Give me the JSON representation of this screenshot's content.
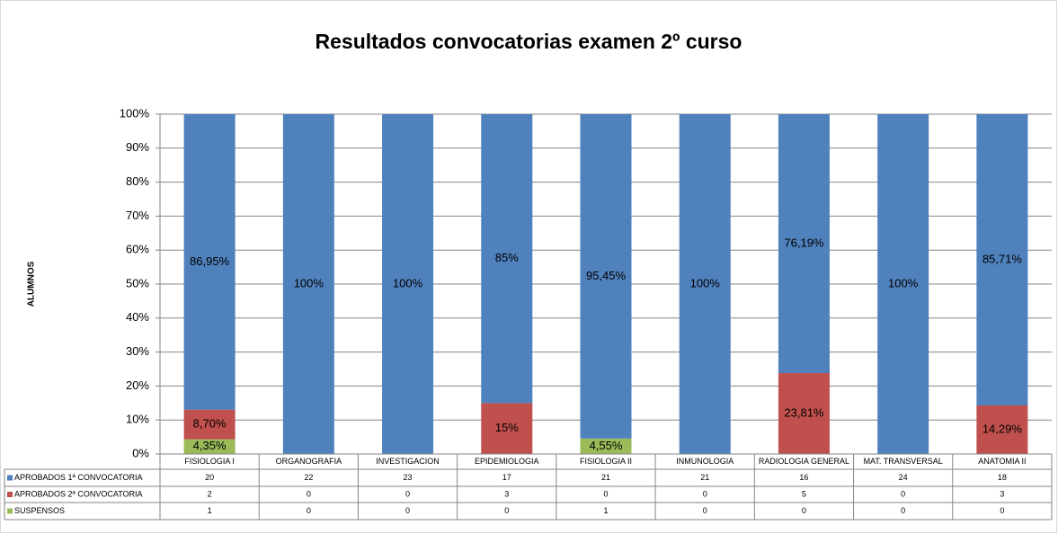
{
  "chart_data": {
    "type": "bar_stacked_100",
    "title": "Resultados convocatorias examen 2º curso",
    "y_label": "ALUMNOS",
    "categories": [
      "FISIOLOGIA I",
      "ORGANOGRAFIA",
      "INVESTIGACION",
      "EPIDEMIOLOGIA",
      "FISIOLOGIA II",
      "INMUNOLOGIA",
      "RADIOLOGIA GENERAL",
      "MAT. TRANSVERSAL",
      "ANATOMIA II"
    ],
    "series": [
      {
        "name": "APROBADOS 1ª CONVOCATORIA",
        "color": "#4f81bd",
        "values": [
          86.95,
          100,
          100,
          85,
          95.45,
          100,
          76.19,
          100,
          85.71
        ],
        "value_labels": [
          "86,95%",
          "100%",
          "100%",
          "85%",
          "95,45%",
          "100%",
          "76,19%",
          "100%",
          "85,71%"
        ],
        "counts": [
          20,
          22,
          23,
          17,
          21,
          21,
          16,
          24,
          18
        ]
      },
      {
        "name": "APROBADOS 2ª CONVOCATORIA",
        "color": "#c0504d",
        "values": [
          8.7,
          0,
          0,
          15,
          0,
          0,
          23.81,
          0,
          14.29
        ],
        "value_labels": [
          "8,70%",
          null,
          null,
          "15%",
          null,
          null,
          "23,81%",
          null,
          "14,29%"
        ],
        "counts": [
          2,
          0,
          0,
          3,
          0,
          0,
          5,
          0,
          3
        ]
      },
      {
        "name": "SUSPENSOS",
        "color": "#9bbb59",
        "values": [
          4.35,
          0,
          0,
          0,
          4.55,
          0,
          0,
          0,
          0
        ],
        "value_labels": [
          "4,35%",
          null,
          null,
          null,
          "4,55%",
          null,
          null,
          null,
          null
        ],
        "counts": [
          1,
          0,
          0,
          0,
          1,
          0,
          0,
          0,
          0
        ]
      }
    ],
    "ylim": [
      0,
      100
    ],
    "yticks": [
      {
        "value": 0,
        "label": "0%"
      },
      {
        "value": 10,
        "label": "10%"
      },
      {
        "value": 20,
        "label": "20%"
      },
      {
        "value": 30,
        "label": "30%"
      },
      {
        "value": 40,
        "label": "40%"
      },
      {
        "value": 50,
        "label": "50%"
      },
      {
        "value": 60,
        "label": "60%"
      },
      {
        "value": 70,
        "label": "70%"
      },
      {
        "value": 80,
        "label": "80%"
      },
      {
        "value": 90,
        "label": "90%"
      },
      {
        "value": 100,
        "label": "100%"
      }
    ],
    "grid": true
  }
}
